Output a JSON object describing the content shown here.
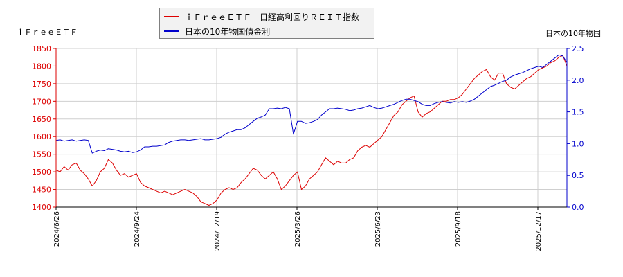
{
  "chart_data": {
    "type": "line",
    "left_axis_label": "ｉＦｒｅｅＥＴＦ",
    "right_axis_label": "日本の10年物国",
    "x_ticks": [
      "2024/6/26",
      "2024/9/24",
      "2024/12/19",
      "2025/3/26",
      "2025/6/23",
      "2025/9/18",
      "2025/12/17"
    ],
    "y_left": {
      "min": 1400,
      "max": 1850,
      "ticks": [
        "1400",
        "1450",
        "1500",
        "1550",
        "1600",
        "1650",
        "1700",
        "1750",
        "1800",
        "1850"
      ]
    },
    "y_right": {
      "min": 0.0,
      "max": 2.5,
      "ticks": [
        "0.0",
        "0.5",
        "1.0",
        "1.5",
        "2.0",
        "2.5"
      ]
    },
    "grid": true,
    "legend_position": "top-center",
    "series": [
      {
        "name": "ｉＦｒｅｅＥＴＦ　日経高利回りＲＥＩＴ指数",
        "axis": "left",
        "color": "#dd0000",
        "values": [
          1505,
          1500,
          1515,
          1505,
          1520,
          1525,
          1505,
          1495,
          1480,
          1460,
          1475,
          1500,
          1510,
          1535,
          1525,
          1505,
          1490,
          1495,
          1485,
          1490,
          1495,
          1470,
          1460,
          1455,
          1450,
          1445,
          1440,
          1445,
          1440,
          1435,
          1440,
          1445,
          1450,
          1445,
          1440,
          1430,
          1415,
          1410,
          1405,
          1410,
          1420,
          1440,
          1450,
          1455,
          1450,
          1455,
          1470,
          1480,
          1495,
          1510,
          1505,
          1490,
          1480,
          1490,
          1500,
          1480,
          1450,
          1460,
          1475,
          1490,
          1500,
          1450,
          1460,
          1480,
          1490,
          1500,
          1520,
          1540,
          1530,
          1520,
          1530,
          1525,
          1525,
          1535,
          1540,
          1560,
          1570,
          1575,
          1570,
          1580,
          1590,
          1600,
          1620,
          1640,
          1660,
          1670,
          1690,
          1700,
          1710,
          1715,
          1670,
          1655,
          1665,
          1670,
          1680,
          1690,
          1700,
          1700,
          1705,
          1705,
          1710,
          1720,
          1735,
          1750,
          1765,
          1775,
          1785,
          1790,
          1770,
          1760,
          1780,
          1780,
          1750,
          1740,
          1735,
          1745,
          1755,
          1765,
          1770,
          1780,
          1790,
          1795,
          1800,
          1810,
          1815,
          1825,
          1830,
          1800
        ]
      },
      {
        "name": "日本の10年物国債金利",
        "axis": "right",
        "color": "#0000cc",
        "values": [
          1.05,
          1.06,
          1.04,
          1.05,
          1.06,
          1.04,
          1.05,
          1.06,
          1.05,
          0.85,
          0.88,
          0.9,
          0.89,
          0.92,
          0.91,
          0.9,
          0.88,
          0.87,
          0.88,
          0.86,
          0.87,
          0.9,
          0.95,
          0.95,
          0.96,
          0.96,
          0.97,
          0.98,
          1.02,
          1.04,
          1.05,
          1.06,
          1.06,
          1.05,
          1.06,
          1.07,
          1.08,
          1.06,
          1.06,
          1.07,
          1.08,
          1.1,
          1.15,
          1.18,
          1.2,
          1.22,
          1.22,
          1.25,
          1.3,
          1.35,
          1.4,
          1.42,
          1.45,
          1.55,
          1.55,
          1.56,
          1.55,
          1.57,
          1.55,
          1.15,
          1.35,
          1.35,
          1.32,
          1.33,
          1.35,
          1.38,
          1.45,
          1.5,
          1.55,
          1.55,
          1.56,
          1.55,
          1.54,
          1.52,
          1.53,
          1.55,
          1.56,
          1.58,
          1.6,
          1.57,
          1.55,
          1.56,
          1.58,
          1.6,
          1.62,
          1.65,
          1.68,
          1.7,
          1.7,
          1.68,
          1.66,
          1.62,
          1.6,
          1.6,
          1.63,
          1.65,
          1.66,
          1.65,
          1.64,
          1.66,
          1.65,
          1.66,
          1.65,
          1.67,
          1.7,
          1.75,
          1.8,
          1.85,
          1.9,
          1.92,
          1.95,
          1.98,
          2.0,
          2.05,
          2.08,
          2.1,
          2.12,
          2.15,
          2.18,
          2.2,
          2.22,
          2.2,
          2.25,
          2.3,
          2.35,
          2.4,
          2.38,
          2.28
        ]
      }
    ]
  }
}
